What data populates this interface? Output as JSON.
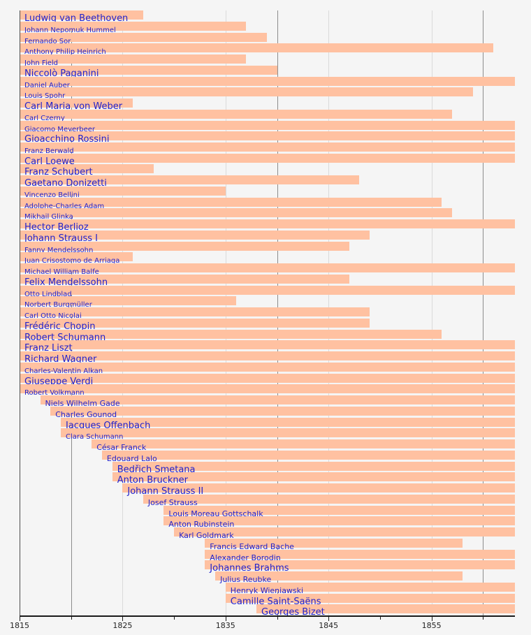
{
  "chart_data": {
    "type": "bar",
    "variant": "timeline-lifespan-gantt",
    "title": "",
    "xlabel": "",
    "ylabel": "",
    "legend": null,
    "x_axis": {
      "min": 1815,
      "max": 1863.1,
      "major_ticks": [
        1815,
        1825,
        1835,
        1845,
        1855
      ],
      "major_tick_labels": [
        "1815",
        "1825",
        "1835",
        "1845",
        "1855"
      ],
      "minor_ticks": [
        1820,
        1830,
        1840,
        1850,
        1860
      ],
      "gridlines": [
        {
          "year": 1820,
          "shade": "dark"
        },
        {
          "year": 1825,
          "shade": "light"
        },
        {
          "year": 1835,
          "shade": "light"
        },
        {
          "year": 1840,
          "shade": "dark"
        },
        {
          "year": 1845,
          "shade": "light"
        },
        {
          "year": 1855,
          "shade": "light"
        },
        {
          "year": 1860,
          "shade": "dark"
        }
      ]
    },
    "rows": [
      {
        "name": "Ludwig van Beethoven",
        "start": 1815,
        "end": 1827,
        "clipped_end": false,
        "label_size": "lg"
      },
      {
        "name": "Johann Nepomuk Hummel",
        "start": 1815,
        "end": 1837,
        "clipped_end": false,
        "label_size": "sm"
      },
      {
        "name": "Fernando Sor",
        "start": 1815,
        "end": 1839,
        "clipped_end": false,
        "label_size": "sm"
      },
      {
        "name": "Anthony Philip Heinrich",
        "start": 1815,
        "end": 1861,
        "clipped_end": false,
        "label_size": "sm"
      },
      {
        "name": "John Field",
        "start": 1815,
        "end": 1837,
        "clipped_end": false,
        "label_size": "sm"
      },
      {
        "name": "Niccolò Paganini",
        "start": 1815,
        "end": 1840,
        "clipped_end": false,
        "label_size": "lg"
      },
      {
        "name": "Daniel Auber",
        "start": 1815,
        "end": null,
        "clipped_end": true,
        "label_size": "sm"
      },
      {
        "name": "Louis Spohr",
        "start": 1815,
        "end": 1859,
        "clipped_end": false,
        "label_size": "sm"
      },
      {
        "name": "Carl Maria von Weber",
        "start": 1815,
        "end": 1826,
        "clipped_end": false,
        "label_size": "lg"
      },
      {
        "name": "Carl Czerny",
        "start": 1815,
        "end": 1857,
        "clipped_end": false,
        "label_size": "sm"
      },
      {
        "name": "Giacomo Meyerbeer",
        "start": 1815,
        "end": null,
        "clipped_end": true,
        "label_size": "sm"
      },
      {
        "name": "Gioacchino Rossini",
        "start": 1815,
        "end": null,
        "clipped_end": true,
        "label_size": "lg"
      },
      {
        "name": "Franz Berwald",
        "start": 1815,
        "end": null,
        "clipped_end": true,
        "label_size": "sm"
      },
      {
        "name": "Carl Loewe",
        "start": 1815,
        "end": null,
        "clipped_end": true,
        "label_size": "lg"
      },
      {
        "name": "Franz Schubert",
        "start": 1815,
        "end": 1828,
        "clipped_end": false,
        "label_size": "lg"
      },
      {
        "name": "Gaetano Donizetti",
        "start": 1815,
        "end": 1848,
        "clipped_end": false,
        "label_size": "lg"
      },
      {
        "name": "Vincenzo Bellini",
        "start": 1815,
        "end": 1835,
        "clipped_end": false,
        "label_size": "sm"
      },
      {
        "name": "Adolphe-Charles Adam",
        "start": 1815,
        "end": 1856,
        "clipped_end": false,
        "label_size": "sm"
      },
      {
        "name": "Mikhail Glinka",
        "start": 1815,
        "end": 1857,
        "clipped_end": false,
        "label_size": "sm"
      },
      {
        "name": "Hector Berlioz",
        "start": 1815,
        "end": null,
        "clipped_end": true,
        "label_size": "lg"
      },
      {
        "name": "Johann Strauss I",
        "start": 1815,
        "end": 1849,
        "clipped_end": false,
        "label_size": "lg"
      },
      {
        "name": "Fanny Mendelssohn",
        "start": 1815,
        "end": 1847,
        "clipped_end": false,
        "label_size": "sm"
      },
      {
        "name": "Juan Crisostomo de Arriaga",
        "start": 1815,
        "end": 1826,
        "clipped_end": false,
        "label_size": "sm"
      },
      {
        "name": "Michael William Balfe",
        "start": 1815,
        "end": null,
        "clipped_end": true,
        "label_size": "sm"
      },
      {
        "name": "Felix Mendelssohn",
        "start": 1815,
        "end": 1847,
        "clipped_end": false,
        "label_size": "lg"
      },
      {
        "name": "Otto Lindblad",
        "start": 1815,
        "end": null,
        "clipped_end": true,
        "label_size": "sm"
      },
      {
        "name": "Norbert Burgmüller",
        "start": 1815,
        "end": 1836,
        "clipped_end": false,
        "label_size": "sm"
      },
      {
        "name": "Carl Otto Nicolai",
        "start": 1815,
        "end": 1849,
        "clipped_end": false,
        "label_size": "sm"
      },
      {
        "name": "Frédéric Chopin",
        "start": 1815,
        "end": 1849,
        "clipped_end": false,
        "label_size": "lg"
      },
      {
        "name": "Robert Schumann",
        "start": 1815,
        "end": 1856,
        "clipped_end": false,
        "label_size": "lg"
      },
      {
        "name": "Franz Liszt",
        "start": 1815,
        "end": null,
        "clipped_end": true,
        "label_size": "lg"
      },
      {
        "name": "Richard Wagner",
        "start": 1815,
        "end": null,
        "clipped_end": true,
        "label_size": "lg"
      },
      {
        "name": "Charles-Valentin Alkan",
        "start": 1815,
        "end": null,
        "clipped_end": true,
        "label_size": "sm"
      },
      {
        "name": "Giuseppe Verdi",
        "start": 1815,
        "end": null,
        "clipped_end": true,
        "label_size": "lg"
      },
      {
        "name": "Robert Volkmann",
        "start": 1815,
        "end": null,
        "clipped_end": true,
        "label_size": "sm"
      },
      {
        "name": "Niels Wilhelm Gade",
        "start": 1817,
        "end": null,
        "clipped_end": true,
        "label_size": "md"
      },
      {
        "name": "Charles Gounod",
        "start": 1818,
        "end": null,
        "clipped_end": true,
        "label_size": "md"
      },
      {
        "name": "Jacques Offenbach",
        "start": 1819,
        "end": null,
        "clipped_end": true,
        "label_size": "lg"
      },
      {
        "name": "Clara Schumann",
        "start": 1819,
        "end": null,
        "clipped_end": true,
        "label_size": "sm"
      },
      {
        "name": "César Franck",
        "start": 1822,
        "end": null,
        "clipped_end": true,
        "label_size": "md"
      },
      {
        "name": "Edouard Lalo",
        "start": 1823,
        "end": null,
        "clipped_end": true,
        "label_size": "md"
      },
      {
        "name": "Bedřich Smetana",
        "start": 1824,
        "end": null,
        "clipped_end": true,
        "label_size": "lg"
      },
      {
        "name": "Anton Bruckner",
        "start": 1824,
        "end": null,
        "clipped_end": true,
        "label_size": "lg"
      },
      {
        "name": "Johann Strauss II",
        "start": 1825,
        "end": null,
        "clipped_end": true,
        "label_size": "lg"
      },
      {
        "name": "Josef Strauss",
        "start": 1827,
        "end": null,
        "clipped_end": true,
        "label_size": "md"
      },
      {
        "name": "Louis Moreau Gottschalk",
        "start": 1829,
        "end": null,
        "clipped_end": true,
        "label_size": "md"
      },
      {
        "name": "Anton Rubinstein",
        "start": 1829,
        "end": null,
        "clipped_end": true,
        "label_size": "md"
      },
      {
        "name": "Karl Goldmark",
        "start": 1830,
        "end": null,
        "clipped_end": true,
        "label_size": "md"
      },
      {
        "name": "Francis Edward Bache",
        "start": 1833,
        "end": 1858,
        "clipped_end": false,
        "label_size": "md"
      },
      {
        "name": "Alexander Borodin",
        "start": 1833,
        "end": null,
        "clipped_end": true,
        "label_size": "md"
      },
      {
        "name": "Johannes Brahms",
        "start": 1833,
        "end": null,
        "clipped_end": true,
        "label_size": "lg"
      },
      {
        "name": "Julius Reubke",
        "start": 1834,
        "end": 1858,
        "clipped_end": false,
        "label_size": "md"
      },
      {
        "name": "Henryk Wieniawski",
        "start": 1835,
        "end": null,
        "clipped_end": true,
        "label_size": "md"
      },
      {
        "name": "Camille Saint-Saëns",
        "start": 1835,
        "end": null,
        "clipped_end": true,
        "label_size": "lg"
      },
      {
        "name": "Georges Bizet",
        "start": 1838,
        "end": null,
        "clipped_end": true,
        "label_size": "lg"
      }
    ]
  },
  "colors": {
    "background": "#f5f5f5",
    "bar": "#ffc1a1",
    "label_text": "#2222cc",
    "gridline_light": "#dadada",
    "gridline_dark": "#8c8c8c",
    "axis_line": "#1a1a1a",
    "axis_spine": "#4d4d4d",
    "tick_label": "#222222"
  }
}
